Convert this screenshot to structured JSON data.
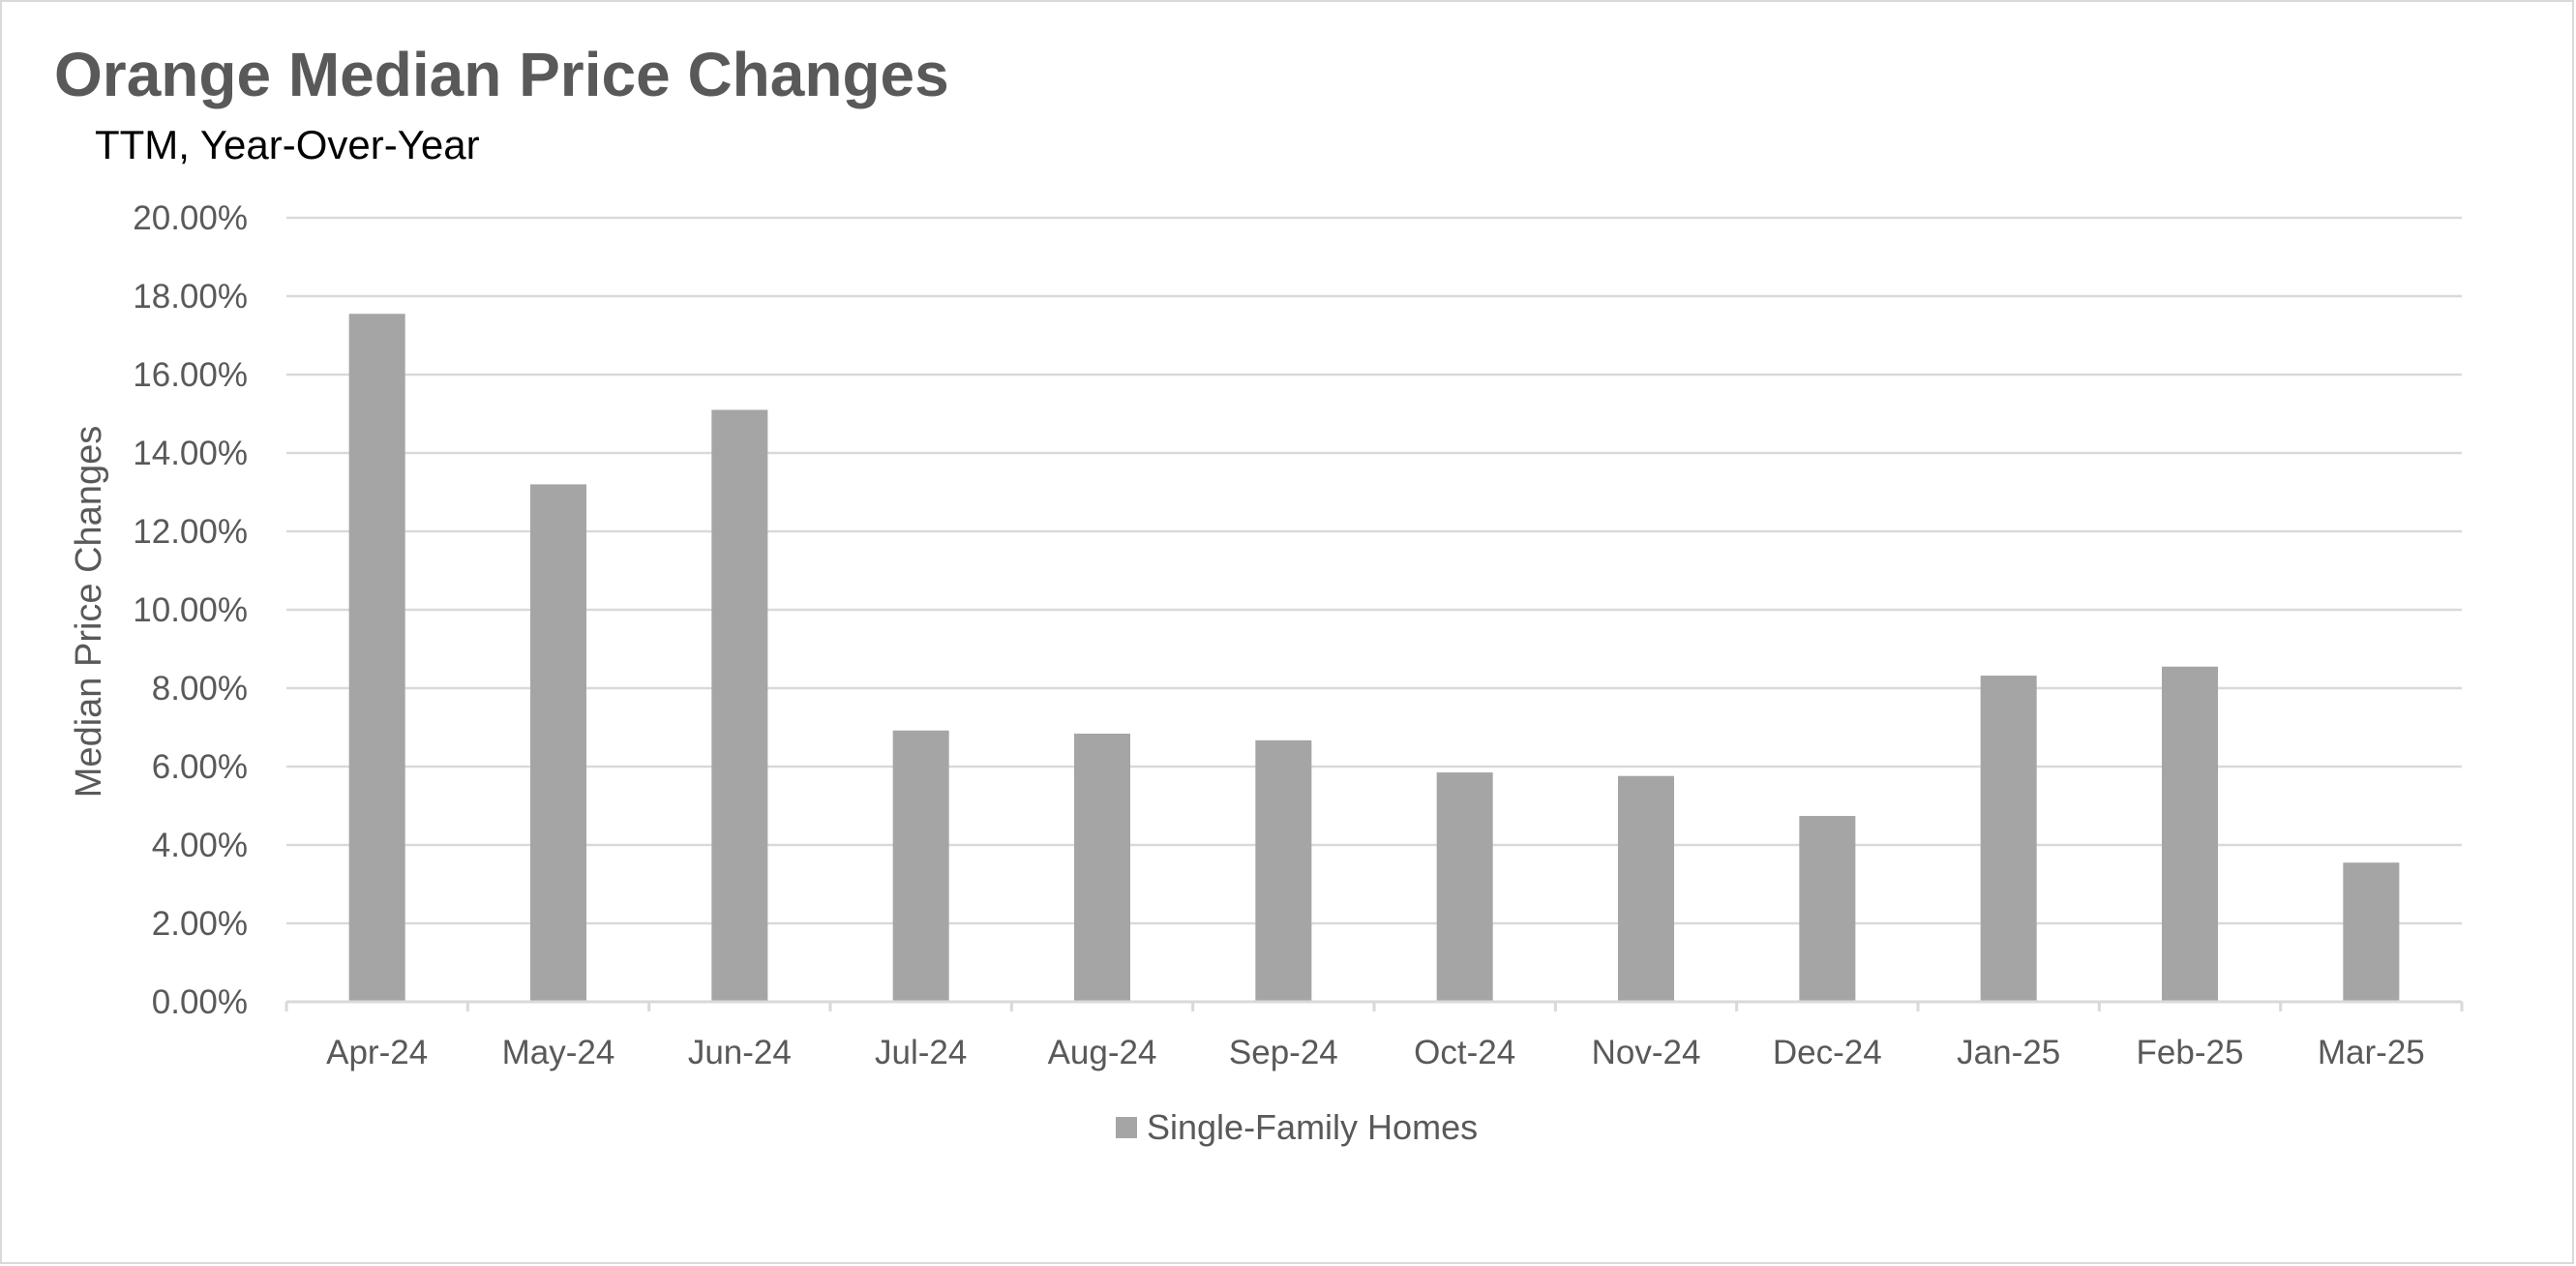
{
  "chart_data": {
    "type": "bar",
    "title": "Orange Median Price Changes",
    "subtitle": "TTM, Year-Over-Year",
    "ylabel": "Median Price Changes",
    "xlabel": "",
    "categories": [
      "Apr-24",
      "May-24",
      "Jun-24",
      "Jul-24",
      "Aug-24",
      "Sep-24",
      "Oct-24",
      "Nov-24",
      "Dec-24",
      "Jan-25",
      "Feb-25",
      "Mar-25"
    ],
    "series": [
      {
        "name": "Single-Family Homes",
        "values": [
          17.55,
          13.2,
          15.1,
          6.92,
          6.84,
          6.67,
          5.85,
          5.76,
          4.74,
          8.32,
          8.55,
          3.55
        ],
        "color": "#a5a5a5"
      }
    ],
    "ylim": [
      0,
      20
    ],
    "yticks": [
      "0.00%",
      "2.00%",
      "4.00%",
      "6.00%",
      "8.00%",
      "10.00%",
      "12.00%",
      "14.00%",
      "16.00%",
      "18.00%",
      "20.00%"
    ],
    "grid": true,
    "legend_position": "bottom",
    "colors": {
      "bar": "#a5a5a5",
      "grid": "#d9d9d9",
      "text": "#595959"
    }
  }
}
